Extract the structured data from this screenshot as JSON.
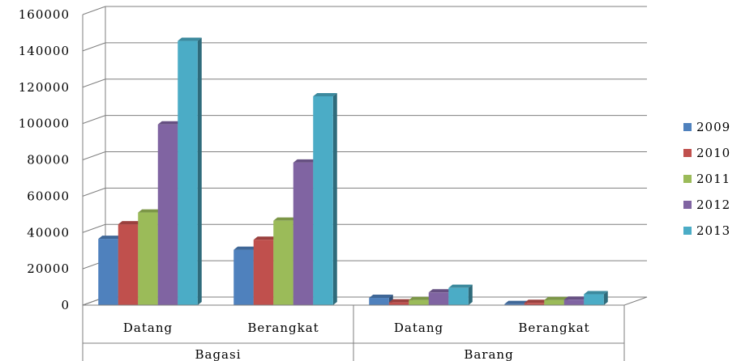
{
  "chart_data": {
    "type": "bar",
    "title": "",
    "xlabel": "",
    "ylabel": "",
    "ylim": [
      0,
      160000
    ],
    "y_ticks": [
      "0",
      "20000",
      "40000",
      "60000",
      "80000",
      "100000",
      "120000",
      "140000",
      "160000"
    ],
    "grid": true,
    "legend_position": "right",
    "groups": [
      {
        "label": "Bagasi",
        "categories": [
          "Datang",
          "Berangkat"
        ]
      },
      {
        "label": "Barang",
        "categories": [
          "Datang",
          "Berangkat"
        ]
      }
    ],
    "categories": [
      "Datang",
      "Berangkat",
      "Datang",
      "Berangkat"
    ],
    "series": [
      {
        "name": "2009",
        "color": "#4F81BD",
        "values": [
          36500,
          30500,
          4000,
          600
        ]
      },
      {
        "name": "2010",
        "color": "#C0504D",
        "values": [
          44500,
          36000,
          1500,
          1200
        ]
      },
      {
        "name": "2011",
        "color": "#9BBB59",
        "values": [
          51000,
          46500,
          2800,
          2800
        ]
      },
      {
        "name": "2012",
        "color": "#8064A2",
        "values": [
          99500,
          78500,
          7000,
          3000
        ]
      },
      {
        "name": "2013",
        "color": "#4BACC6",
        "values": [
          145500,
          115000,
          9500,
          6000
        ]
      }
    ]
  }
}
